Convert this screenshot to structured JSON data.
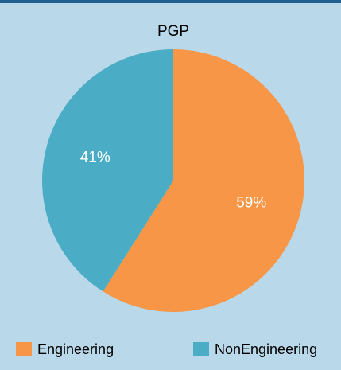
{
  "chart_data": {
    "type": "pie",
    "title": "PGP",
    "categories": [
      "Engineering",
      "NonEngineering"
    ],
    "values": [
      59,
      41
    ],
    "value_labels": [
      "59%",
      "41%"
    ],
    "colors": [
      "#f79646",
      "#4bacc6"
    ]
  }
}
